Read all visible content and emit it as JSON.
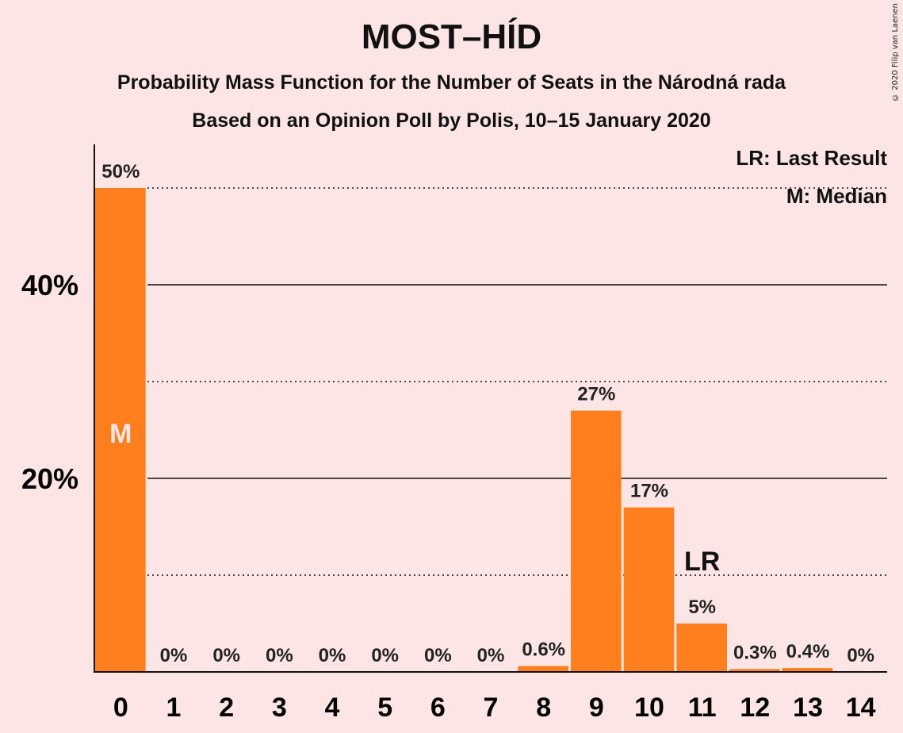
{
  "chart_data": {
    "type": "bar",
    "title": "MOST–HÍD",
    "subtitle": "Probability Mass Function for the Number of Seats in the Národná rada",
    "subtitle2": "Based on an Opinion Poll by Polis, 10–15 January 2020",
    "categories": [
      "0",
      "1",
      "2",
      "3",
      "4",
      "5",
      "6",
      "7",
      "8",
      "9",
      "10",
      "11",
      "12",
      "13",
      "14"
    ],
    "values": [
      50,
      0,
      0,
      0,
      0,
      0,
      0,
      0,
      0.6,
      27,
      17,
      5,
      0.3,
      0.4,
      0
    ],
    "value_labels": [
      "50%",
      "0%",
      "0%",
      "0%",
      "0%",
      "0%",
      "0%",
      "0%",
      "0.6%",
      "27%",
      "17%",
      "5%",
      "0.3%",
      "0.4%",
      "0%"
    ],
    "y_ticks": [
      {
        "value": 20,
        "label": "20%"
      },
      {
        "value": 40,
        "label": "40%"
      }
    ],
    "y_minor_gridlines": [
      10,
      30,
      50
    ],
    "ylim": [
      0,
      54
    ],
    "median_index": 0,
    "median_marker": "M",
    "last_result_index": 11,
    "last_result_marker": "LR",
    "legend": [
      "LR: Last Result",
      "M: Median"
    ],
    "legend_position": "top-right",
    "bar_color": "#ff7f1f",
    "background_color": "#fde5e5"
  },
  "copyright": "© 2020 Filip van Laenen"
}
